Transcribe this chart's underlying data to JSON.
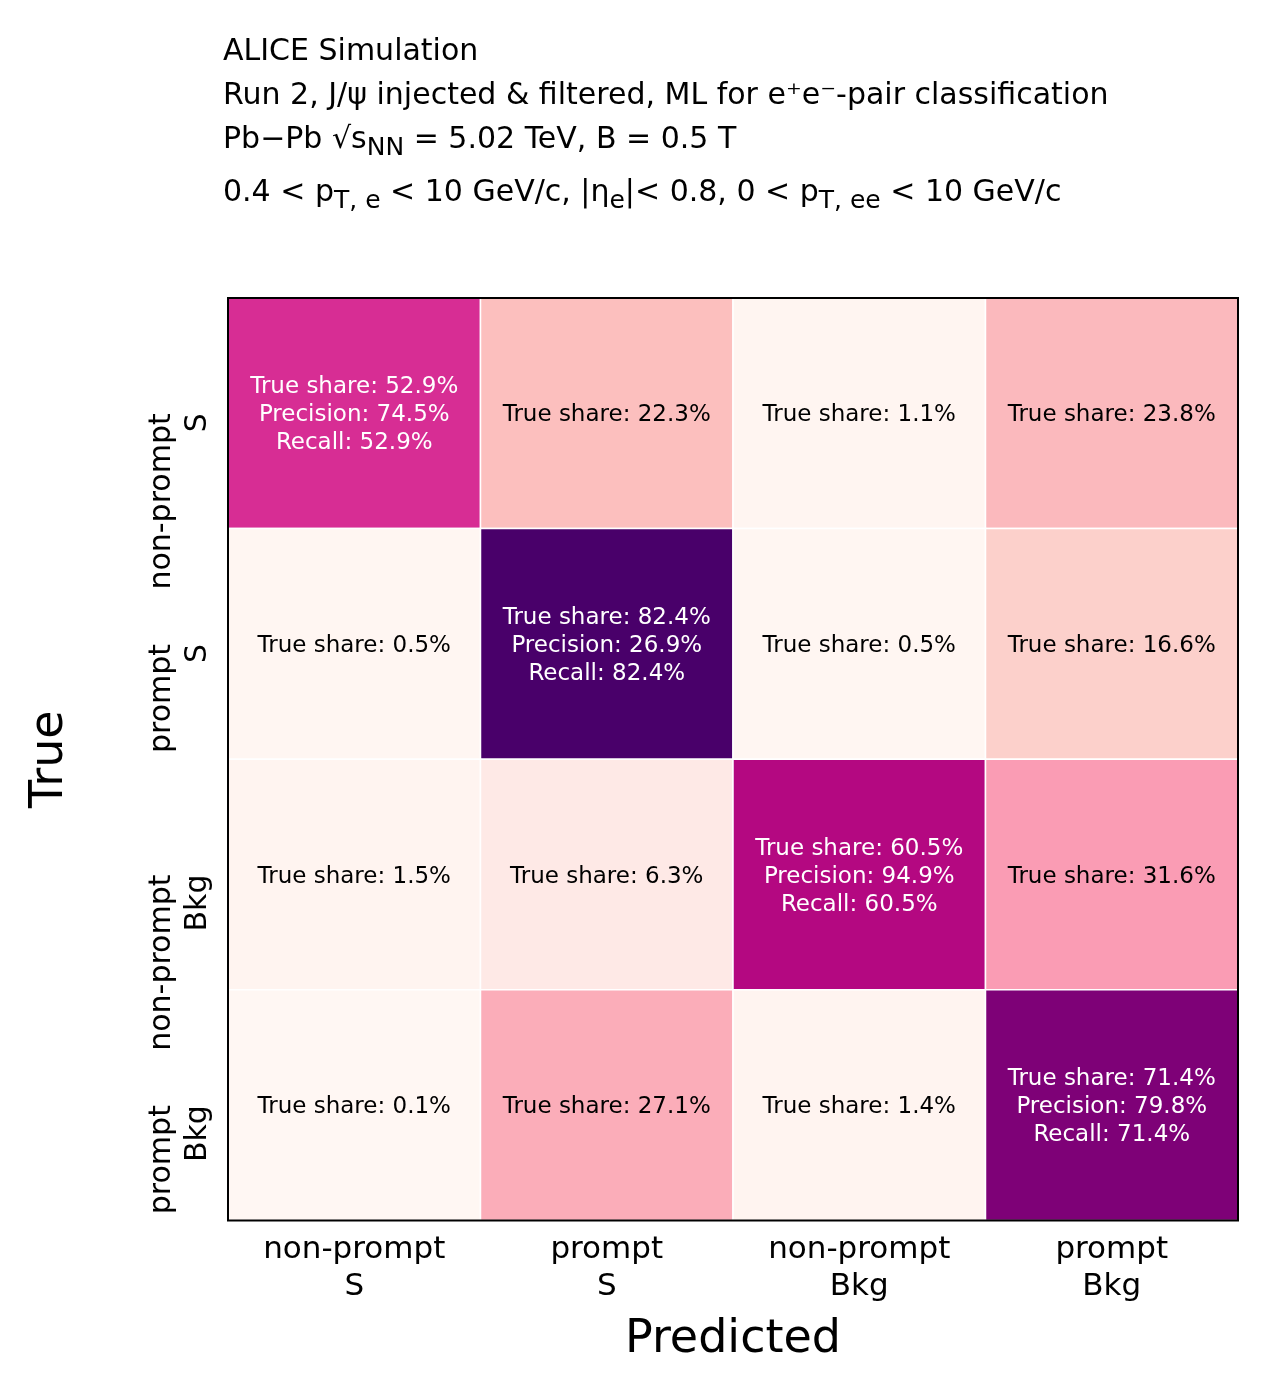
{
  "chart_data": {
    "type": "heatmap",
    "title": "ALICE Simulation",
    "subtitle": "Run 2, J/ψ injected & filtered, ML for e⁺e⁻-pair classification\nPb−Pb √s$_{NN}$ = 5.02 TeV, B = 0.5 T\n0.4 < p$_{T, e}$ < 10 GeV/c, |η$_{e}$|< 0.8, 0 < p$_{T, ee}$ < 10 GeV/c",
    "xlabel": "Predicted",
    "ylabel": "True",
    "categories": [
      "non-prompt S",
      "prompt S",
      "non-prompt Bkg",
      "prompt Bkg"
    ],
    "y_categories": [
      "non-prompt S",
      "prompt S",
      "non-prompt Bkg",
      "prompt Bkg"
    ],
    "cells": [
      [
        52.9,
        22.3,
        1.1,
        23.8
      ],
      [
        0.5,
        82.4,
        0.5,
        16.6
      ],
      [
        1.5,
        6.3,
        60.5,
        31.6
      ],
      [
        0.1,
        27.1,
        1.4,
        71.4
      ]
    ],
    "cell_labels": [
      [
        "True share: 52.9%",
        "True share: 22.3%",
        "True share: 1.1%",
        "True share: 23.8%"
      ],
      [
        "True share: 0.5%",
        "True share: 82.4%",
        "True share: 0.5%",
        "True share: 16.6%"
      ],
      [
        "True share: 1.5%",
        "True share: 6.3%",
        "True share: 60.5%",
        "True share: 31.6%"
      ],
      [
        "True share: 0.1%",
        "True share: 27.1%",
        "True share: 1.4%",
        "True share: 71.4%"
      ]
    ],
    "annotations": [
      "Precision: 74.5%\nRecall: 52.9%",
      "Precision: 26.9%\nRecall: 82.4%",
      "Precision: 94.9%\nRecall: 60.5%",
      "Precision: 79.8%\nRecall: 71.4%"
    ]
  }
}
